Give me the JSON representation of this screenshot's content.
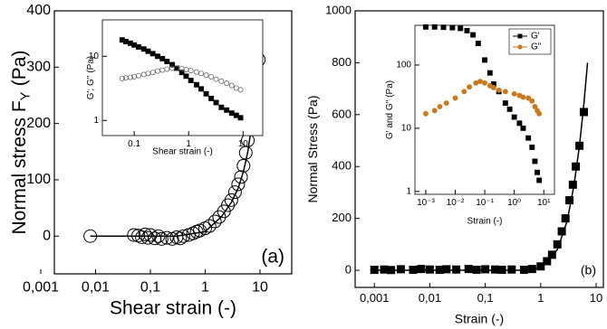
{
  "chart_data": [
    {
      "type": "scatter",
      "xscale": "log",
      "yscale": "linear",
      "ylabel": "Normal stress F",
      "ylabel_sub": "Y",
      "ylabel_end": "(Pa)",
      "xlabel": "Shear strain (-)",
      "annotation": "(a)",
      "xlim": [
        0.00177,
        37.9
      ],
      "ylim": [
        -67,
        400
      ],
      "xticks": [
        {
          "value": 0.001,
          "label": "0,001"
        },
        {
          "value": 0.01,
          "label": "0,01"
        },
        {
          "value": 0.1,
          "label": "0,1"
        },
        1,
        10
      ],
      "yticks": [
        0,
        100,
        200,
        300,
        400
      ],
      "series": [
        {
          "color": "#000000",
          "marker": "circle",
          "filled": false,
          "x": [
            0.008,
            0.05,
            0.06,
            0.07,
            0.08,
            0.09,
            0.1,
            0.12,
            0.14,
            0.16,
            0.2,
            0.25,
            0.3,
            0.35,
            0.4,
            0.5,
            0.6,
            0.7,
            0.8,
            1,
            1.2,
            1.5,
            1.8,
            2.2,
            2.6,
            3,
            3.5,
            4,
            4.5,
            5,
            5.5,
            6,
            7,
            8,
            9.5
          ],
          "values": [
            0,
            2,
            1,
            -2,
            3,
            -3,
            2,
            -4,
            0,
            -5,
            -3,
            -5,
            -2,
            -4,
            0,
            2,
            5,
            8,
            10,
            14,
            18,
            26,
            34,
            44,
            55,
            64,
            78,
            92,
            105,
            125,
            148,
            170,
            200,
            255,
            313
          ]
        },
        {
          "color": "#000000",
          "marker": "none",
          "line": true,
          "x": [
            0.008,
            0.3,
            1,
            2,
            3,
            4,
            5,
            6,
            7,
            8,
            9,
            10
          ],
          "values": [
            0,
            0,
            8,
            35,
            60,
            85,
            115,
            150,
            195,
            245,
            300,
            345
          ]
        }
      ]
    },
    {
      "type": "scatter",
      "xscale": "log",
      "yscale": "log",
      "ylabel": "G'; G'' (Pa)",
      "xlabel": "Shear strain (-)",
      "xlim": [
        0.026,
        23
      ],
      "ylim": [
        0.58,
        37
      ],
      "xticks": [
        0.1,
        1,
        10
      ],
      "yticks": [
        1,
        10
      ],
      "series": [
        {
          "color": "#000000",
          "marker": "square",
          "filled": true,
          "x": [
            0.06,
            0.07,
            0.085,
            0.1,
            0.12,
            0.15,
            0.18,
            0.22,
            0.27,
            0.33,
            0.4,
            0.5,
            0.6,
            0.75,
            0.9,
            1.1,
            1.4,
            1.7,
            2.1,
            2.6,
            3.2,
            4,
            5,
            6.2,
            7.5,
            9
          ],
          "values": [
            18,
            17,
            16,
            15,
            14,
            13,
            12,
            11,
            10,
            9.2,
            8.3,
            7.4,
            6.5,
            5.6,
            4.9,
            4.2,
            3.6,
            3.1,
            2.6,
            2.2,
            1.9,
            1.6,
            1.45,
            1.3,
            1.2,
            1.1
          ]
        },
        {
          "color": "#555555",
          "marker": "circle",
          "filled": false,
          "x": [
            0.06,
            0.07,
            0.085,
            0.1,
            0.12,
            0.15,
            0.18,
            0.22,
            0.27,
            0.33,
            0.4,
            0.5,
            0.6,
            0.75,
            0.9,
            1.1,
            1.4,
            1.7,
            2.1,
            2.6,
            3.2,
            4,
            5,
            6.2,
            7.5,
            9
          ],
          "values": [
            4.5,
            4.6,
            4.7,
            4.8,
            5,
            5.2,
            5.4,
            5.6,
            5.9,
            6.1,
            6.3,
            6.5,
            6.5,
            6.4,
            6.2,
            6,
            5.7,
            5.4,
            5.1,
            4.8,
            4.4,
            4.1,
            3.8,
            3.5,
            3.2,
            3
          ]
        }
      ]
    },
    {
      "type": "scatter",
      "xscale": "log",
      "yscale": "linear",
      "ylabel": "Normal Stress (Pa)",
      "xlabel": "Strain (-)",
      "annotation": "(b)",
      "xlim": [
        0.00045,
        13.5
      ],
      "ylim": [
        -66,
        1000
      ],
      "xticks": [
        {
          "value": 0.001,
          "label": "0,001"
        },
        {
          "value": 0.01,
          "label": "0,01"
        },
        {
          "value": 0.1,
          "label": "0,1"
        },
        1,
        10
      ],
      "yticks": [
        0,
        200,
        400,
        600,
        800,
        1000
      ],
      "series": [
        {
          "color": "#000000",
          "marker": "square",
          "filled": true,
          "x": [
            0.001,
            0.0015,
            0.002,
            0.003,
            0.005,
            0.007,
            0.01,
            0.015,
            0.02,
            0.03,
            0.05,
            0.07,
            0.1,
            0.15,
            0.2,
            0.3,
            0.5,
            0.7,
            1,
            1.3,
            1.6,
            2,
            2.4,
            2.8,
            3.3,
            3.8,
            4.3,
            5,
            6
          ],
          "values": [
            2,
            3,
            1,
            4,
            2,
            5,
            3,
            2,
            4,
            3,
            5,
            2,
            4,
            3,
            2,
            3,
            2,
            5,
            15,
            35,
            60,
            100,
            150,
            200,
            270,
            330,
            400,
            480,
            610
          ]
        },
        {
          "color": "#000000",
          "marker": "none",
          "line": true,
          "x": [
            0.001,
            0.5,
            1,
            2,
            3,
            4,
            5,
            6,
            7
          ],
          "values": [
            0,
            0,
            10,
            80,
            190,
            330,
            480,
            640,
            800
          ]
        }
      ]
    },
    {
      "type": "scatter",
      "xscale": "log",
      "yscale": "log",
      "ylabel": "G' and G'' (Pa)",
      "xlabel": "Strain (-)",
      "legend": "upper right",
      "xlim": [
        0.00043,
        23
      ],
      "ylim": [
        0.9,
        425
      ],
      "xticks": [
        {
          "value": 0.001,
          "label": "10⁻³"
        },
        {
          "value": 0.01,
          "label": "10⁻²"
        },
        {
          "value": 0.1,
          "label": "10⁻¹"
        },
        {
          "value": 1,
          "label": "10⁰"
        },
        {
          "value": 10,
          "label": "10¹"
        }
      ],
      "yticks": [
        1,
        10,
        100
      ],
      "series": [
        {
          "name": "G'",
          "color": "#000000",
          "marker": "square",
          "filled": true,
          "x": [
            0.001,
            0.002,
            0.004,
            0.008,
            0.015,
            0.025,
            0.04,
            0.06,
            0.1,
            0.15,
            0.2,
            0.3,
            0.5,
            0.7,
            1,
            1.5,
            2,
            3,
            4,
            5,
            6,
            7
          ],
          "values": [
            400,
            400,
            395,
            390,
            380,
            350,
            300,
            220,
            120,
            75,
            50,
            38,
            25,
            20,
            15,
            12,
            10,
            7,
            5,
            3,
            2,
            1.5
          ]
        },
        {
          "name": "G\"",
          "color": "#c87a1e",
          "marker": "circle",
          "filled": true,
          "x": [
            0.001,
            0.002,
            0.003,
            0.005,
            0.01,
            0.02,
            0.03,
            0.05,
            0.07,
            0.1,
            0.15,
            0.2,
            0.3,
            0.5,
            1,
            1.5,
            2,
            3,
            4,
            5,
            6,
            7
          ],
          "values": [
            17,
            19,
            22,
            25,
            30,
            38,
            45,
            52,
            55,
            52,
            47,
            44,
            40,
            38,
            35,
            33,
            31,
            30,
            27,
            22,
            19,
            17
          ]
        }
      ]
    }
  ]
}
